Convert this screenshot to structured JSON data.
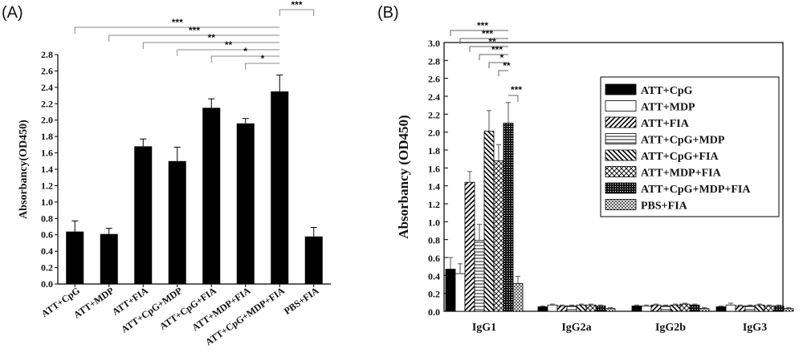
{
  "panel_labels": [
    "(A)",
    "(B)"
  ],
  "chart_data": [
    {
      "type": "bar",
      "ylabel": "Absorbancy(OD450)",
      "xlabel": "",
      "ylim": [
        0,
        2.8
      ],
      "yticks": [
        "0.0",
        "0.2",
        "0.4",
        "0.6",
        "0.8",
        "1.0",
        "1.2",
        "1.4",
        "1.6",
        "1.8",
        "2.0",
        "2.2",
        "2.4",
        "2.6",
        "2.8"
      ],
      "categories": [
        "ATT+CpG",
        "ATT+MDP",
        "ATT+FIA",
        "ATT+CpG+MDP",
        "ATT+CpG+FIA",
        "ATT+MDP+FIA",
        "ATT+CpG+MDP+FIA",
        "PBS+FIA"
      ],
      "values": [
        0.64,
        0.61,
        1.68,
        1.5,
        2.15,
        1.96,
        2.35,
        0.58
      ],
      "errors": [
        0.13,
        0.07,
        0.09,
        0.17,
        0.11,
        0.06,
        0.2,
        0.11
      ],
      "significance": [
        {
          "from": 0,
          "to": 6,
          "label": "***"
        },
        {
          "from": 1,
          "to": 6,
          "label": "***"
        },
        {
          "from": 2,
          "to": 6,
          "label": "**"
        },
        {
          "from": 3,
          "to": 6,
          "label": "**"
        },
        {
          "from": 4,
          "to": 6,
          "label": "*"
        },
        {
          "from": 5,
          "to": 6,
          "label": "*"
        },
        {
          "from": 6,
          "to": 7,
          "label": "***"
        }
      ]
    },
    {
      "type": "bar",
      "ylabel": "Absorbancy (OD450)",
      "xlabel": "",
      "ylim": [
        0,
        3.0
      ],
      "yticks": [
        "0.0",
        "0.2",
        "0.4",
        "0.6",
        "0.8",
        "1.0",
        "1.2",
        "1.4",
        "1.6",
        "1.8",
        "2.0",
        "2.2",
        "2.4",
        "2.6",
        "2.8",
        "3.0"
      ],
      "categories": [
        "IgG1",
        "IgG2a",
        "IgG2b",
        "IgG3"
      ],
      "series": [
        {
          "name": "ATT+CpG",
          "pattern": "solid",
          "values": [
            0.47,
            0.05,
            0.06,
            0.05
          ],
          "errors": [
            0.13,
            0.01,
            0.01,
            0.01
          ]
        },
        {
          "name": "ATT+MDP",
          "pattern": "white",
          "values": [
            0.42,
            0.07,
            0.06,
            0.07
          ],
          "errors": [
            0.11,
            0.01,
            0.01,
            0.02
          ]
        },
        {
          "name": "ATT+FIA",
          "pattern": "diag-right",
          "values": [
            1.44,
            0.06,
            0.07,
            0.06
          ],
          "errors": [
            0.12,
            0.01,
            0.01,
            0.01
          ]
        },
        {
          "name": "ATT+CpG+MDP",
          "pattern": "horizontal",
          "values": [
            0.79,
            0.06,
            0.06,
            0.06
          ],
          "errors": [
            0.18,
            0.01,
            0.01,
            0.01
          ]
        },
        {
          "name": "ATT+CpG+FIA",
          "pattern": "diag-left",
          "values": [
            2.01,
            0.07,
            0.07,
            0.07
          ],
          "errors": [
            0.23,
            0.01,
            0.01,
            0.01
          ]
        },
        {
          "name": "ATT+MDP+FIA",
          "pattern": "crosshatch",
          "values": [
            1.68,
            0.07,
            0.08,
            0.06
          ],
          "errors": [
            0.18,
            0.01,
            0.01,
            0.01
          ]
        },
        {
          "name": "ATT+CpG+MDP+FIA",
          "pattern": "dense-dots",
          "values": [
            2.1,
            0.06,
            0.07,
            0.06
          ],
          "errors": [
            0.23,
            0.01,
            0.01,
            0.01
          ]
        },
        {
          "name": "PBS+FIA",
          "pattern": "checker",
          "values": [
            0.31,
            0.03,
            0.03,
            0.03
          ],
          "errors": [
            0.08,
            0.01,
            0.01,
            0.01
          ]
        }
      ],
      "significance": [
        {
          "from": 0,
          "to": 6,
          "label": "***"
        },
        {
          "from": 1,
          "to": 6,
          "label": "***"
        },
        {
          "from": 2,
          "to": 6,
          "label": "**"
        },
        {
          "from": 3,
          "to": 6,
          "label": "***"
        },
        {
          "from": 4,
          "to": 6,
          "label": "*"
        },
        {
          "from": 5,
          "to": 6,
          "label": "**"
        },
        {
          "from": 6,
          "to": 7,
          "label": "***"
        }
      ],
      "legend_position": "right"
    }
  ]
}
